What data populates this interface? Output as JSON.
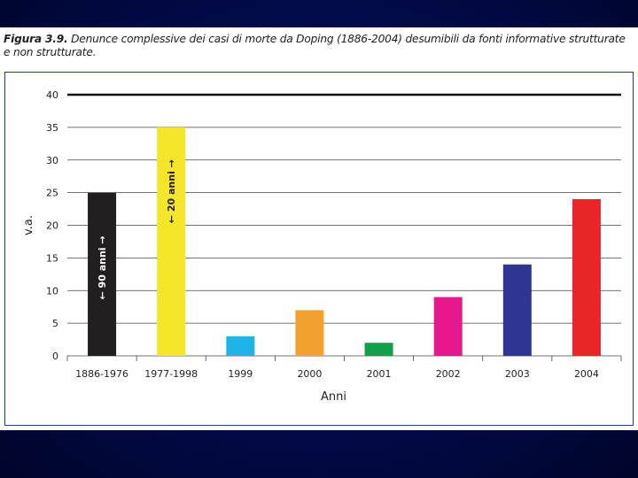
{
  "caption": {
    "lead": "Figura 3.9.",
    "line1_rest": " Denunce complessive dei casi di morte da Doping (1886-2004) desumibili da fonti informative strutturate",
    "line2": "e non strutturate."
  },
  "chart_data": {
    "type": "bar",
    "title": "Denunce complessive dei casi di morte da Doping (1886-2004) desumibili da fonti informative strutturate e non strutturate.",
    "xlabel": "Anni",
    "ylabel": "v.a.",
    "ylim": [
      0,
      40
    ],
    "yticks": [
      0,
      5,
      10,
      15,
      20,
      25,
      30,
      35,
      40
    ],
    "grid": true,
    "categories": [
      "1886-1976",
      "1977-1998",
      "1999",
      "2000",
      "2001",
      "2002",
      "2003",
      "2004"
    ],
    "values": [
      25,
      35,
      3,
      7,
      2,
      9,
      14,
      24
    ],
    "colors": [
      "#231f20",
      "#f5e62a",
      "#1eb4e8",
      "#f2a12e",
      "#10a04a",
      "#e6198c",
      "#2e3592",
      "#e8262a"
    ],
    "annotations": [
      {
        "category": "1886-1976",
        "text": "90 anni",
        "color": "#ffffff"
      },
      {
        "category": "1977-1998",
        "text": "20 anni",
        "color": "#222222"
      }
    ]
  }
}
